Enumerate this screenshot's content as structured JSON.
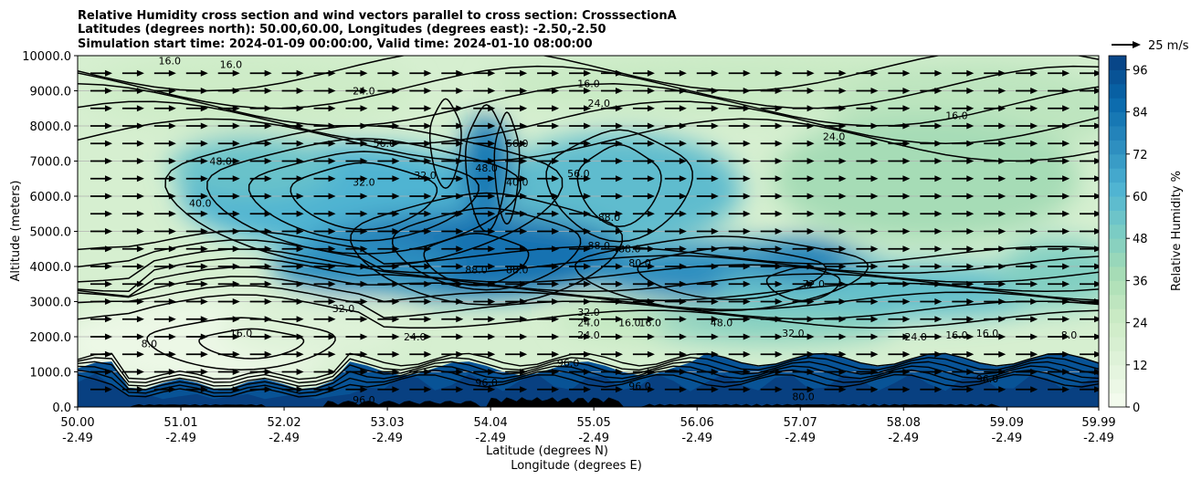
{
  "chart_data": {
    "type": "contour",
    "title_lines": [
      "Relative Humidity cross section and wind vectors parallel to cross section: CrosssectionA",
      "Latitudes (degrees north): 50.00,60.00, Longitudes (degrees east): -2.50,-2.50",
      "Simulation start time: 2024-01-09 00:00:00, Valid time: 2024-01-10 08:00:00"
    ],
    "xlabel_lines": [
      "Latitude (degrees N)",
      "Longitude (degrees E)"
    ],
    "ylabel": "Altitude (meters)",
    "x_range": [
      50.0,
      59.99
    ],
    "y_range": [
      0,
      10000
    ],
    "x_ticks": [
      {
        "lat": "50.00",
        "lon": "-2.49",
        "v": 50.0
      },
      {
        "lat": "51.01",
        "lon": "-2.49",
        "v": 51.01
      },
      {
        "lat": "52.02",
        "lon": "-2.49",
        "v": 52.02
      },
      {
        "lat": "53.03",
        "lon": "-2.49",
        "v": 53.03
      },
      {
        "lat": "54.04",
        "lon": "-2.49",
        "v": 54.04
      },
      {
        "lat": "55.05",
        "lon": "-2.49",
        "v": 55.05
      },
      {
        "lat": "56.06",
        "lon": "-2.49",
        "v": 56.06
      },
      {
        "lat": "57.07",
        "lon": "-2.49",
        "v": 57.07
      },
      {
        "lat": "58.08",
        "lon": "-2.49",
        "v": 58.08
      },
      {
        "lat": "59.09",
        "lon": "-2.49",
        "v": 59.09
      },
      {
        "lat": "59.99",
        "lon": "-2.49",
        "v": 59.99
      }
    ],
    "y_ticks": [
      {
        "label": "0.0",
        "v": 0
      },
      {
        "label": "1000.0",
        "v": 1000
      },
      {
        "label": "2000.0",
        "v": 2000
      },
      {
        "label": "3000.0",
        "v": 3000
      },
      {
        "label": "4000.0",
        "v": 4000
      },
      {
        "label": "5000.0",
        "v": 5000
      },
      {
        "label": "6000.0",
        "v": 6000
      },
      {
        "label": "7000.0",
        "v": 7000
      },
      {
        "label": "8000.0",
        "v": 8000
      },
      {
        "label": "9000.0",
        "v": 9000
      },
      {
        "label": "10000.0",
        "v": 10000
      }
    ],
    "grid": true,
    "colorbar": {
      "label": "Relative Humidity %",
      "range": [
        0,
        100
      ],
      "ticks": [
        0,
        12,
        24,
        36,
        48,
        60,
        72,
        84,
        96
      ],
      "colormap": "GnBu",
      "colors": [
        "#f7fcf0",
        "#e0f3db",
        "#ccebc5",
        "#a8ddb5",
        "#7bccc4",
        "#4eb3d3",
        "#2b8cbe",
        "#0868ac",
        "#084081"
      ]
    },
    "wind_key": {
      "label": "25 m/s",
      "value": 25
    },
    "vector_field": {
      "x_columns": 32,
      "y_levels": [
        500,
        1000,
        1500,
        2000,
        2500,
        3000,
        3500,
        4000,
        4500,
        5000,
        5500,
        6000,
        6500,
        7000,
        7500,
        8000,
        8500,
        9000,
        9500
      ],
      "direction": "east",
      "approx_speed_ms": 20
    },
    "humidity_features": [
      {
        "desc": "saturated boundary layer",
        "lat_range": [
          50.0,
          59.99
        ],
        "alt_range": [
          0,
          1400
        ],
        "rh": 96
      },
      {
        "desc": "dry slot",
        "lat_center": 51.8,
        "alt_center": 1700,
        "rh": 12
      },
      {
        "desc": "moist frontal zone",
        "lat_center": 53.8,
        "alt_center": 4500,
        "rh": 90
      },
      {
        "desc": "mid-level moist layer",
        "lat_center": 52.9,
        "alt_center": 6000,
        "rh": 72
      },
      {
        "desc": "moist band",
        "lat_center": 56.7,
        "alt_center": 3700,
        "rh": 80
      },
      {
        "desc": "dry upper air",
        "lat_center": 56.5,
        "alt_center": 8800,
        "rh": 24
      }
    ],
    "contour_labels": [
      {
        "text": "16.0",
        "x": 50.9,
        "y": 9750
      },
      {
        "text": "16.0",
        "x": 51.5,
        "y": 9650
      },
      {
        "text": "24.0",
        "x": 52.8,
        "y": 8900
      },
      {
        "text": "16.0",
        "x": 55.0,
        "y": 9100
      },
      {
        "text": "24.0",
        "x": 55.1,
        "y": 8550
      },
      {
        "text": "16.0",
        "x": 58.6,
        "y": 8200
      },
      {
        "text": "24.0",
        "x": 57.4,
        "y": 7600
      },
      {
        "text": "48.0",
        "x": 51.4,
        "y": 6900
      },
      {
        "text": "56.0",
        "x": 53.0,
        "y": 7400
      },
      {
        "text": "56.0",
        "x": 54.3,
        "y": 7400
      },
      {
        "text": "48.0",
        "x": 54.0,
        "y": 6700
      },
      {
        "text": "40.0",
        "x": 54.3,
        "y": 6300
      },
      {
        "text": "56.0",
        "x": 54.9,
        "y": 6550
      },
      {
        "text": "40.0",
        "x": 51.2,
        "y": 5700
      },
      {
        "text": "32.0",
        "x": 52.8,
        "y": 6300
      },
      {
        "text": "32.0",
        "x": 53.4,
        "y": 6500
      },
      {
        "text": "88.0",
        "x": 55.2,
        "y": 5300
      },
      {
        "text": "88.0",
        "x": 55.1,
        "y": 4500
      },
      {
        "text": "88.0",
        "x": 55.4,
        "y": 4400
      },
      {
        "text": "80.0",
        "x": 55.5,
        "y": 4000
      },
      {
        "text": "88.0",
        "x": 53.9,
        "y": 3800
      },
      {
        "text": "88.0",
        "x": 54.3,
        "y": 3800
      },
      {
        "text": "72.0",
        "x": 57.2,
        "y": 3400
      },
      {
        "text": "32.0",
        "x": 52.6,
        "y": 2700
      },
      {
        "text": "32.0",
        "x": 55.0,
        "y": 2600
      },
      {
        "text": "24.0",
        "x": 55.0,
        "y": 2300
      },
      {
        "text": "48.0",
        "x": 56.3,
        "y": 2300
      },
      {
        "text": "16.0",
        "x": 51.6,
        "y": 2000
      },
      {
        "text": "8.0",
        "x": 50.7,
        "y": 1700
      },
      {
        "text": "24.0",
        "x": 53.3,
        "y": 1900
      },
      {
        "text": "24.0",
        "x": 55.0,
        "y": 1950
      },
      {
        "text": "16.0",
        "x": 55.4,
        "y": 2300
      },
      {
        "text": "16.0",
        "x": 55.6,
        "y": 2300
      },
      {
        "text": "32.0",
        "x": 57.0,
        "y": 2000
      },
      {
        "text": "24.0",
        "x": 58.2,
        "y": 1900
      },
      {
        "text": "16.0",
        "x": 58.6,
        "y": 1950
      },
      {
        "text": "16.0",
        "x": 58.9,
        "y": 2000
      },
      {
        "text": "8.0",
        "x": 59.7,
        "y": 1950
      },
      {
        "text": "96.0",
        "x": 54.8,
        "y": 1150
      },
      {
        "text": "96.0",
        "x": 54.0,
        "y": 600
      },
      {
        "text": "96.0",
        "x": 55.5,
        "y": 500
      },
      {
        "text": "96.0",
        "x": 58.9,
        "y": 700
      },
      {
        "text": "80.0",
        "x": 57.1,
        "y": 200
      },
      {
        "text": "96.0",
        "x": 52.8,
        "y": 100
      }
    ]
  }
}
